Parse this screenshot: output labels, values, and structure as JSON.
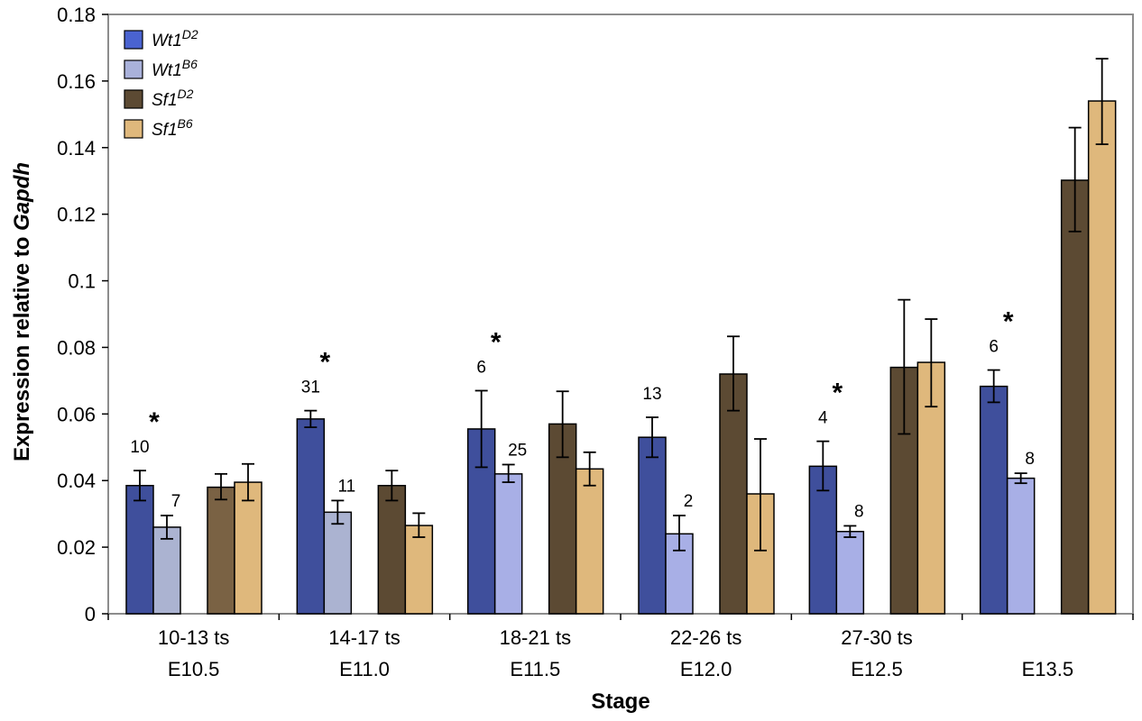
{
  "chart_data": {
    "type": "bar",
    "ylabel_plain": "Expression relative to ",
    "ylabel_italic": "Gapdh",
    "xlabel": "Stage",
    "ylim": [
      0,
      0.18
    ],
    "yticks": [
      "0",
      "0.02",
      "0.04",
      "0.06",
      "0.08",
      "0.1",
      "0.12",
      "0.14",
      "0.16",
      "0.18"
    ],
    "categories": [
      {
        "line1": "10-13 ts",
        "line2": "E10.5"
      },
      {
        "line1": "14-17 ts",
        "line2": "E11.0"
      },
      {
        "line1": "18-21 ts",
        "line2": "E11.5"
      },
      {
        "line1": "22-26 ts",
        "line2": "E12.0"
      },
      {
        "line1": "27-30 ts",
        "line2": "E12.5"
      },
      {
        "line1": "",
        "line2": "E13.5"
      }
    ],
    "series": [
      {
        "name_base": "Wt1",
        "name_sup": "D2",
        "color": "#3f4f9c",
        "values": [
          0.0385,
          0.0585,
          0.0555,
          0.053,
          0.0443,
          0.0683
        ],
        "err_low": [
          0.034,
          0.056,
          0.044,
          0.047,
          0.037,
          0.0635
        ],
        "err_high": [
          0.043,
          0.061,
          0.067,
          0.059,
          0.0518,
          0.0732
        ],
        "n": [
          "10",
          "31",
          "6",
          "13",
          "4",
          "6"
        ]
      },
      {
        "name_base": "Wt1",
        "name_sup": "B6",
        "color": "#a9b1da",
        "bar_colors": [
          "#abb3d1",
          "#abb3d1",
          "#a8afe6",
          "#a8afe6",
          "#a8afe6",
          "#a8afe6"
        ],
        "values": [
          0.026,
          0.0305,
          0.042,
          0.024,
          0.0247,
          0.0407
        ],
        "err_low": [
          0.0225,
          0.027,
          0.0395,
          0.019,
          0.023,
          0.0392
        ],
        "err_high": [
          0.0295,
          0.034,
          0.0448,
          0.0295,
          0.0264,
          0.0422
        ],
        "n": [
          "7",
          "11",
          "25",
          "2",
          "8",
          "8"
        ]
      },
      {
        "name_base": "Sf1",
        "name_sup": "D2",
        "color": "#5c4a33",
        "bar_colors": [
          "#7a6244",
          "#5c4a33",
          "#5c4a33",
          "#5c4a33",
          "#5c4a33",
          "#5c4a33"
        ],
        "values": [
          0.038,
          0.0385,
          0.057,
          0.072,
          0.074,
          0.1302
        ],
        "err_low": [
          0.0343,
          0.034,
          0.047,
          0.061,
          0.054,
          0.1148
        ],
        "err_high": [
          0.042,
          0.043,
          0.0668,
          0.0833,
          0.0943,
          0.146
        ],
        "n": []
      },
      {
        "name_base": "Sf1",
        "name_sup": "B6",
        "color": "#dfb87c",
        "values": [
          0.0395,
          0.0265,
          0.0435,
          0.036,
          0.0755,
          0.154
        ],
        "err_low": [
          0.034,
          0.023,
          0.0385,
          0.019,
          0.0622,
          0.141
        ],
        "err_high": [
          0.045,
          0.0302,
          0.0485,
          0.0525,
          0.0885,
          0.1667
        ],
        "n": []
      }
    ],
    "significance_marker": "*",
    "significance": [
      true,
      true,
      true,
      false,
      true,
      true
    ],
    "legend_position": "top-left",
    "grid": false
  }
}
